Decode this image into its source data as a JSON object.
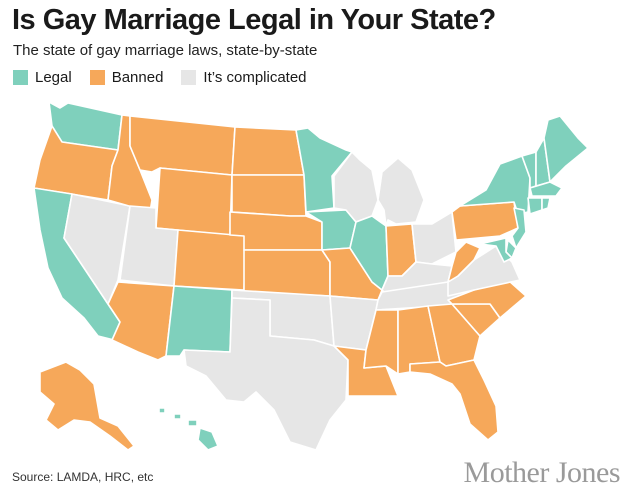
{
  "title": "Is Gay Marriage Legal in Your State?",
  "subtitle": "The state of gay marriage laws, state-by-state",
  "legend": [
    {
      "label": "Legal",
      "color": "#7fd0bc",
      "key": "legal"
    },
    {
      "label": "Banned",
      "color": "#f6a85a",
      "key": "banned"
    },
    {
      "label": "It’s complicated",
      "color": "#e6e6e6",
      "key": "complicated"
    }
  ],
  "states": {
    "WA": "legal",
    "OR": "banned",
    "CA": "legal",
    "NV": "complicated",
    "ID": "banned",
    "MT": "banned",
    "WY": "banned",
    "UT": "complicated",
    "AZ": "banned",
    "CO": "banned",
    "NM": "legal",
    "ND": "banned",
    "SD": "banned",
    "NE": "banned",
    "KS": "banned",
    "OK": "complicated",
    "TX": "complicated",
    "MN": "legal",
    "IA": "legal",
    "MO": "banned",
    "AR": "complicated",
    "LA": "banned",
    "WI": "complicated",
    "IL": "legal",
    "MI": "complicated",
    "IN": "banned",
    "OH": "complicated",
    "KY": "complicated",
    "TN": "complicated",
    "MS": "banned",
    "AL": "banned",
    "GA": "banned",
    "FL": "banned",
    "SC": "banned",
    "NC": "banned",
    "VA": "complicated",
    "WV": "banned",
    "PA": "banned",
    "NY": "legal",
    "VT": "legal",
    "NH": "legal",
    "ME": "legal",
    "MA": "legal",
    "RI": "legal",
    "CT": "legal",
    "NJ": "legal",
    "DE": "legal",
    "MD": "legal",
    "AK": "banned",
    "HI": "legal"
  },
  "source": "Source: LAMDA, HRC, etc",
  "logo_text": "Mother Jones"
}
